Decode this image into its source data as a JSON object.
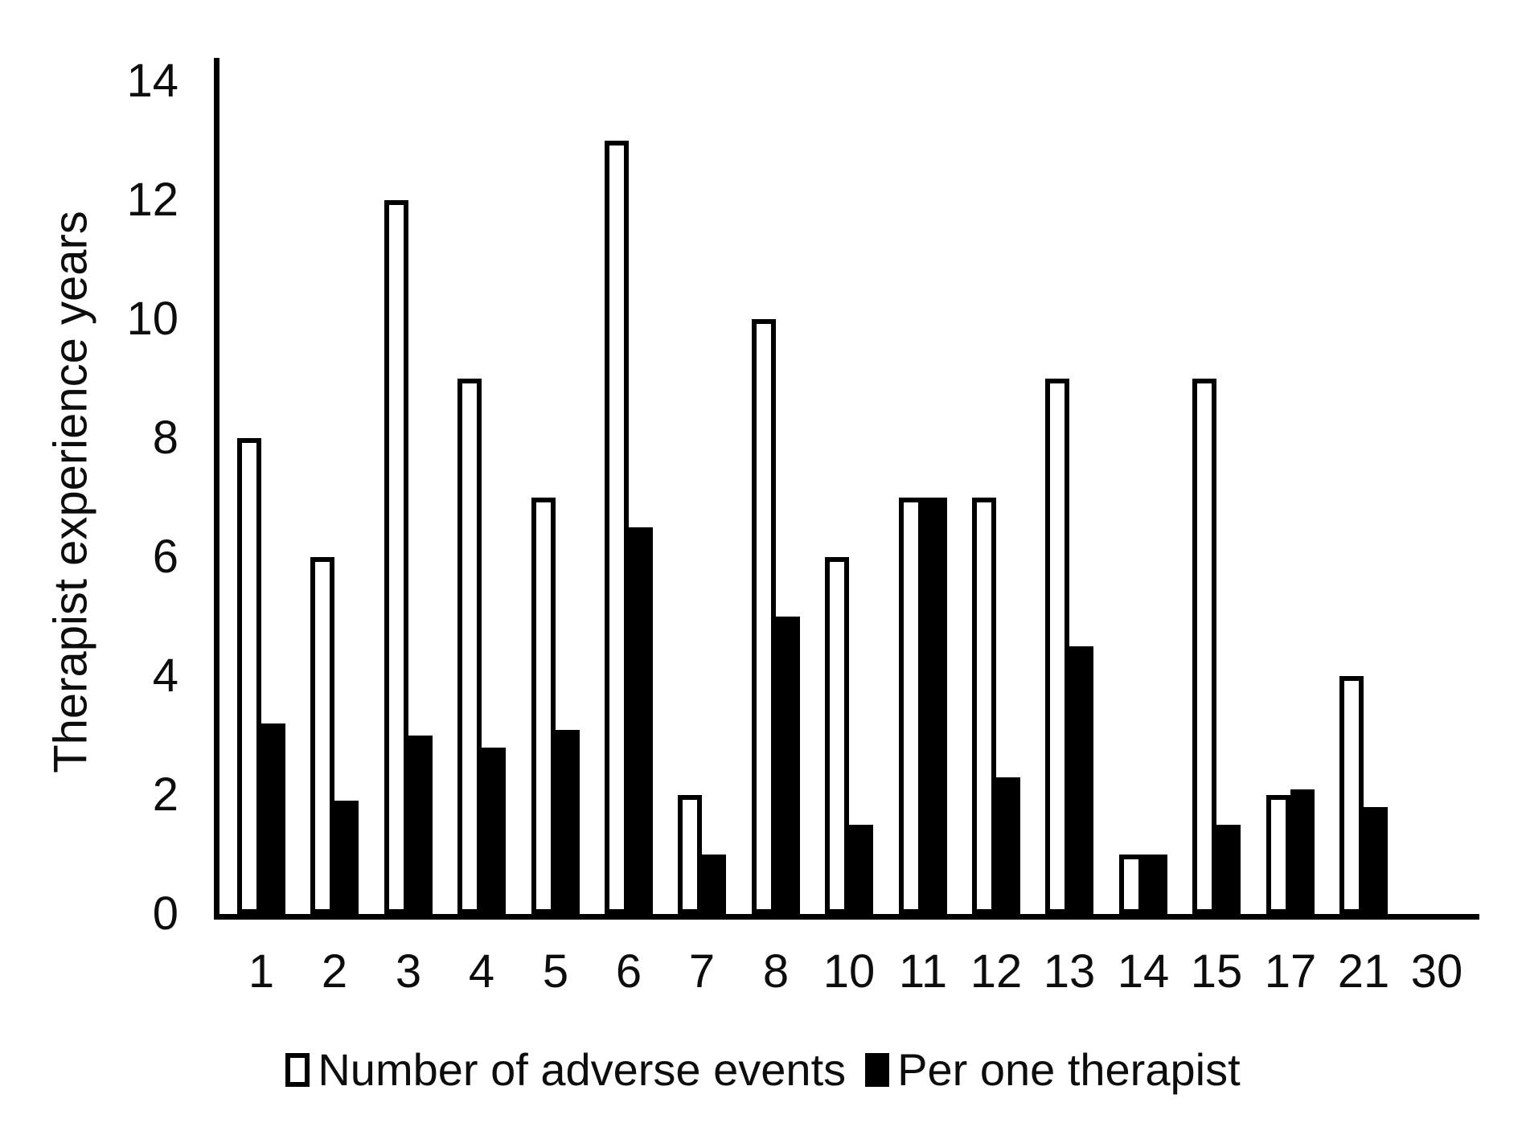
{
  "chart_data": {
    "type": "bar",
    "title": "",
    "xlabel": "",
    "ylabel": "Therapist experience years",
    "categories": [
      "1",
      "2",
      "3",
      "4",
      "5",
      "6",
      "7",
      "8",
      "10",
      "11",
      "12",
      "13",
      "14",
      "15",
      "17",
      "21",
      "30"
    ],
    "series": [
      {
        "name": "Number of adverse events",
        "style": "outlined-white",
        "fill": "#ffffff",
        "stroke": "#000000",
        "values": [
          8,
          6,
          12,
          9,
          7,
          13,
          2,
          10,
          6,
          7,
          7,
          9,
          1,
          9,
          2,
          4,
          0
        ]
      },
      {
        "name": "Per one therapist",
        "style": "solid-black",
        "fill": "#000000",
        "stroke": "#000000",
        "values": [
          3.2,
          1.9,
          3,
          2.8,
          3.1,
          6.5,
          1,
          5,
          1.5,
          7,
          2.3,
          4.5,
          1,
          1.5,
          2.1,
          1.8,
          0
        ]
      }
    ],
    "ylim": [
      0,
      14
    ],
    "yticks": [
      0,
      2,
      4,
      6,
      8,
      10,
      12,
      14
    ],
    "grid": false,
    "legend_position": "bottom",
    "colors": {
      "background": "#ffffff",
      "axis": "#000000",
      "text": "#0d0d0d"
    }
  }
}
